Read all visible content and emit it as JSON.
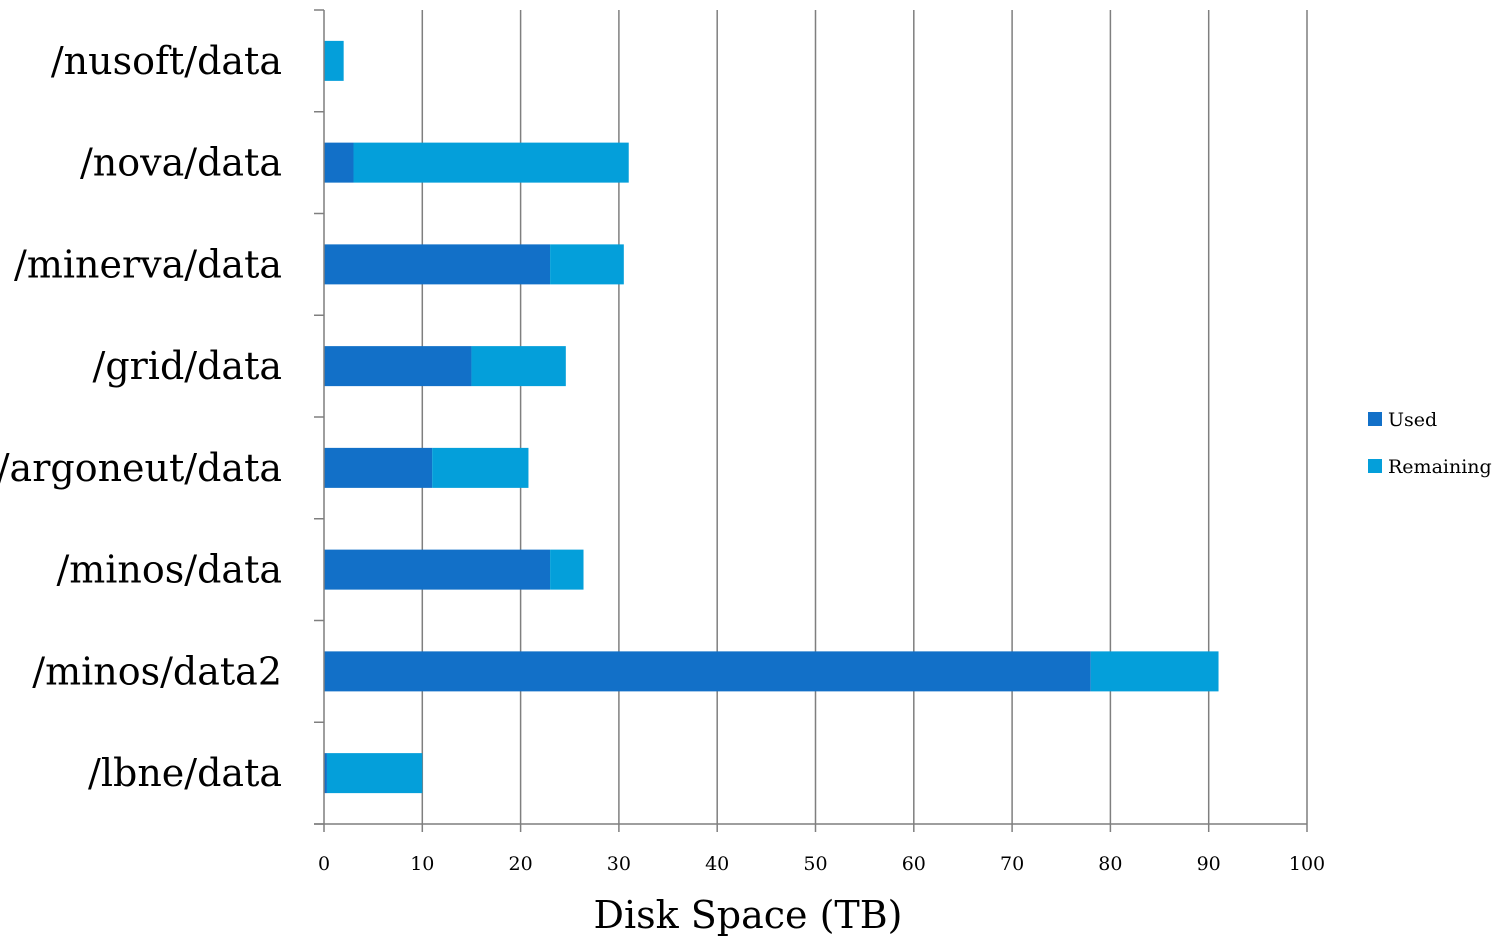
{
  "chart_data": {
    "type": "bar",
    "orientation": "horizontal",
    "stacked": true,
    "categories": [
      "/nusoft/data",
      "/nova/data",
      "/minerva/data",
      "/grid/data",
      "/argoneut/data",
      "/minos/data",
      "/minos/data2",
      "/lbne/data"
    ],
    "series": [
      {
        "name": "Used",
        "color": "#1270C8",
        "values": [
          0,
          3,
          23,
          15,
          11,
          23,
          78,
          0.3
        ]
      },
      {
        "name": "Remaining",
        "color": "#049FDA",
        "values": [
          2,
          28,
          7.5,
          9.6,
          9.8,
          3.4,
          13,
          9.7
        ]
      }
    ],
    "title": "",
    "xlabel": "Disk Space (TB)",
    "ylabel": "",
    "xlim": [
      0,
      100
    ],
    "xticks": [
      0,
      10,
      20,
      30,
      40,
      50,
      60,
      70,
      80,
      90,
      100
    ],
    "grid": "vertical",
    "legend_position": "right"
  }
}
